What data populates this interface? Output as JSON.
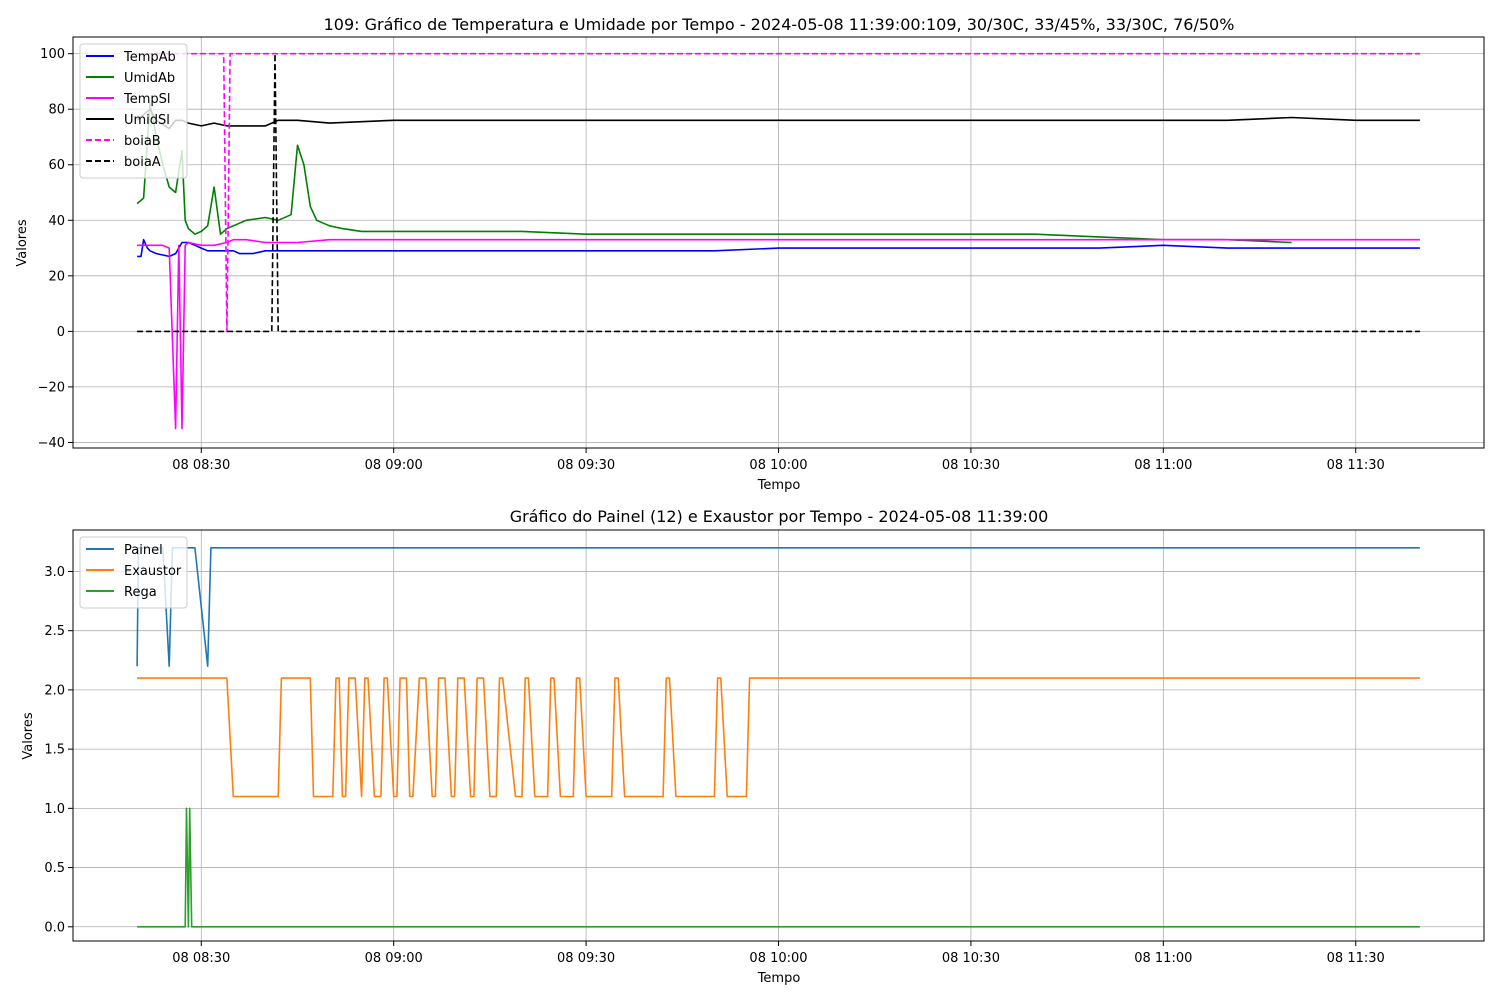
{
  "chart_data": [
    {
      "type": "line",
      "title": "109: Gráfico de Temperatura e Umidade por Tempo - 2024-05-08 11:39:00:109, 30/30C, 33/45%, 33/30C, 76/50%",
      "xlabel": "Tempo",
      "ylabel": "Valores",
      "x_ticks": [
        "08 08:30",
        "08 09:00",
        "08 09:30",
        "08 10:00",
        "08 10:30",
        "08 11:00",
        "08 11:30"
      ],
      "x_tick_minutes": [
        30,
        60,
        90,
        120,
        150,
        180,
        210
      ],
      "xlim_minutes": [
        10,
        230
      ],
      "y_ticks": [
        -40,
        -20,
        0,
        20,
        40,
        60,
        80,
        100
      ],
      "ylim": [
        -42,
        106
      ],
      "grid": true,
      "legend_position": "top-left",
      "series": [
        {
          "name": "TempAb",
          "color": "#0000ff",
          "dash": "solid",
          "x": [
            20,
            20.6,
            21,
            21.6,
            22,
            23,
            25,
            26,
            27,
            28,
            29,
            30,
            31,
            32,
            33,
            34,
            35,
            36,
            38,
            40,
            45,
            50,
            55,
            60,
            70,
            80,
            90,
            100,
            110,
            120,
            130,
            140,
            150,
            160,
            170,
            180,
            190,
            200,
            210,
            220
          ],
          "y": [
            27,
            27,
            33,
            30,
            29,
            28,
            27,
            28,
            32,
            32,
            31,
            30,
            29,
            29,
            29,
            29,
            29,
            28,
            28,
            29,
            29,
            29,
            29,
            29,
            29,
            29,
            29,
            29,
            29,
            30,
            30,
            30,
            30,
            30,
            30,
            31,
            30,
            30,
            30,
            30
          ]
        },
        {
          "name": "UmidAb",
          "color": "#008000",
          "dash": "solid",
          "x": [
            20,
            21,
            22,
            23,
            24,
            25,
            26,
            27,
            27.5,
            28,
            29,
            30,
            31,
            32,
            33,
            34,
            35,
            37,
            40,
            42,
            44,
            45,
            46,
            47,
            48,
            50,
            52,
            55,
            60,
            65,
            70,
            80,
            90,
            100,
            110,
            120,
            130,
            140,
            150,
            160,
            170,
            180,
            190,
            200
          ],
          "y": [
            46,
            48,
            82,
            70,
            60,
            52,
            50,
            65,
            40,
            37,
            35,
            36,
            38,
            52,
            35,
            37,
            38,
            40,
            41,
            40,
            42,
            67,
            60,
            45,
            40,
            38,
            37,
            36,
            36,
            36,
            36,
            36,
            35,
            35,
            35,
            35,
            35,
            35,
            35,
            35,
            34,
            33,
            33,
            32
          ]
        },
        {
          "name": "TempSl",
          "color": "#ff00ff",
          "dash": "solid",
          "x": [
            20,
            22,
            24,
            25,
            26,
            26.5,
            27,
            27.5,
            28,
            30,
            32,
            34,
            35,
            37,
            40,
            45,
            50,
            55,
            60,
            70,
            80,
            90,
            100,
            110,
            120,
            130,
            140,
            150,
            160,
            170,
            180,
            190,
            200,
            210,
            220
          ],
          "y": [
            31,
            31,
            31,
            30,
            -35,
            31,
            -35,
            31,
            32,
            31,
            31,
            32,
            33,
            33,
            32,
            32,
            33,
            33,
            33,
            33,
            33,
            33,
            33,
            33,
            33,
            33,
            33,
            33,
            33,
            33,
            33,
            33,
            33,
            33,
            33
          ]
        },
        {
          "name": "UmidSl",
          "color": "#000000",
          "dash": "solid",
          "x": [
            20,
            22,
            23,
            25,
            26,
            27,
            28,
            30,
            32,
            34,
            35,
            40,
            41,
            42,
            45,
            50,
            60,
            70,
            80,
            90,
            100,
            110,
            120,
            130,
            140,
            150,
            160,
            170,
            180,
            190,
            200,
            210,
            220
          ],
          "y": [
            76,
            80,
            76,
            73,
            76,
            76,
            75,
            74,
            75,
            74,
            74,
            74,
            75,
            76,
            76,
            75,
            76,
            76,
            76,
            76,
            76,
            76,
            76,
            76,
            76,
            76,
            76,
            76,
            76,
            76,
            77,
            76,
            76
          ]
        },
        {
          "name": "boiaB",
          "color": "#ff00ff",
          "dash": "dashed",
          "x": [
            20,
            33.5,
            34,
            34.5,
            35,
            220
          ],
          "y": [
            100,
            100,
            0,
            100,
            100,
            100
          ]
        },
        {
          "name": "boiaA",
          "color": "#000000",
          "dash": "dashed",
          "x": [
            20,
            41,
            41.5,
            42,
            42.5,
            220
          ],
          "y": [
            0,
            0,
            100,
            0,
            0,
            0
          ]
        }
      ]
    },
    {
      "type": "line",
      "title": "Gráfico do Painel (12) e Exaustor por Tempo - 2024-05-08 11:39:00",
      "xlabel": "Tempo",
      "ylabel": "Valores",
      "x_ticks": [
        "08 08:30",
        "08 09:00",
        "08 09:30",
        "08 10:00",
        "08 10:30",
        "08 11:00",
        "08 11:30"
      ],
      "x_tick_minutes": [
        30,
        60,
        90,
        120,
        150,
        180,
        210
      ],
      "xlim_minutes": [
        10,
        230
      ],
      "y_ticks": [
        "0.0",
        "0.5",
        "1.0",
        "1.5",
        "2.0",
        "2.5",
        "3.0"
      ],
      "ylim": [
        -0.12,
        3.35
      ],
      "grid": true,
      "legend_position": "top-left",
      "series": [
        {
          "name": "Painel",
          "color": "#1f77b4",
          "dash": "solid",
          "x": [
            20,
            20.2,
            22,
            24,
            25,
            25.5,
            27,
            28,
            29,
            31,
            31.5,
            220
          ],
          "y": [
            2.2,
            3.2,
            3.2,
            3.2,
            2.2,
            3.2,
            3.2,
            3.2,
            3.2,
            2.2,
            3.2,
            3.2
          ]
        },
        {
          "name": "Exaustor",
          "color": "#ff7f0e",
          "dash": "solid",
          "x": [
            20,
            34,
            35,
            42,
            42.5,
            47,
            47.5,
            50.5,
            51,
            51.5,
            52,
            52.5,
            53,
            54,
            55,
            55.5,
            56,
            57,
            58,
            58.5,
            59,
            60,
            60.5,
            61,
            62,
            62.5,
            63,
            64,
            65,
            66,
            66.5,
            67,
            68,
            69,
            69.5,
            70,
            71,
            72,
            72.5,
            73,
            74,
            75,
            76,
            76.5,
            77,
            79,
            80,
            80.5,
            81,
            82,
            84,
            84.5,
            85,
            86,
            88,
            88.5,
            89,
            90,
            94,
            94.5,
            95,
            96,
            102,
            102.5,
            103,
            104,
            110,
            110.5,
            111,
            112,
            115,
            115.5,
            116,
            117,
            220
          ],
          "y": [
            2.1,
            2.1,
            1.1,
            1.1,
            2.1,
            2.1,
            1.1,
            1.1,
            2.1,
            2.1,
            1.1,
            1.1,
            2.1,
            2.1,
            1.1,
            2.1,
            2.1,
            1.1,
            1.1,
            2.1,
            2.1,
            1.1,
            1.1,
            2.1,
            2.1,
            1.1,
            1.1,
            2.1,
            2.1,
            1.1,
            1.1,
            2.1,
            2.1,
            1.1,
            1.1,
            2.1,
            2.1,
            1.1,
            1.1,
            2.1,
            2.1,
            1.1,
            1.1,
            2.1,
            2.1,
            1.1,
            1.1,
            2.1,
            2.1,
            1.1,
            1.1,
            2.1,
            2.1,
            1.1,
            1.1,
            2.1,
            2.1,
            1.1,
            1.1,
            2.1,
            2.1,
            1.1,
            1.1,
            2.1,
            2.1,
            1.1,
            1.1,
            2.1,
            2.1,
            1.1,
            1.1,
            2.1,
            2.1,
            2.1,
            2.1
          ]
        },
        {
          "name": "Rega",
          "color": "#2ca02c",
          "dash": "solid",
          "x": [
            20,
            27.5,
            27.7,
            28,
            28.2,
            28.5,
            220
          ],
          "y": [
            0,
            0,
            1,
            0,
            1,
            0,
            0
          ]
        }
      ]
    }
  ]
}
